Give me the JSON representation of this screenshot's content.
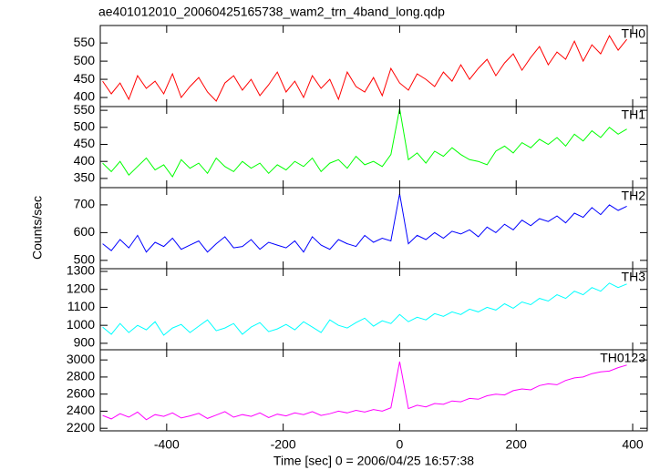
{
  "chart_data": {
    "type": "line",
    "title": "ae401012010_20060425165738_wam2_trn_4band_long.qdp",
    "x_label": "Time [sec] 0 = 2006/04/25 16:57:38",
    "y_label": "Counts/sec",
    "xlim": [
      -514,
      425
    ],
    "xticks": [
      -400,
      -200,
      0,
      200,
      400
    ],
    "x": [
      -510,
      -495,
      -480,
      -465,
      -450,
      -435,
      -420,
      -405,
      -390,
      -375,
      -360,
      -345,
      -330,
      -315,
      -300,
      -285,
      -270,
      -255,
      -240,
      -225,
      -210,
      -195,
      -180,
      -165,
      -150,
      -135,
      -120,
      -105,
      -90,
      -75,
      -60,
      -45,
      -30,
      -15,
      0,
      15,
      30,
      45,
      60,
      75,
      90,
      105,
      120,
      135,
      150,
      165,
      180,
      195,
      210,
      225,
      240,
      255,
      270,
      285,
      300,
      315,
      330,
      345,
      360,
      375,
      390
    ],
    "panels": [
      {
        "name": "TH0",
        "color": "#ff0000",
        "ylim": [
          375,
          598
        ],
        "yticks": [
          400,
          450,
          500,
          550
        ],
        "values": [
          445,
          410,
          440,
          395,
          460,
          425,
          445,
          410,
          465,
          400,
          430,
          455,
          415,
          390,
          440,
          460,
          420,
          450,
          405,
          435,
          470,
          415,
          445,
          400,
          460,
          425,
          450,
          395,
          470,
          430,
          415,
          455,
          405,
          480,
          440,
          420,
          465,
          450,
          430,
          470,
          445,
          490,
          450,
          480,
          505,
          460,
          495,
          520,
          475,
          510,
          540,
          490,
          525,
          505,
          555,
          500,
          545,
          520,
          570,
          530,
          560
        ]
      },
      {
        "name": "TH1",
        "color": "#00ff00",
        "ylim": [
          323,
          561
        ],
        "yticks": [
          350,
          400,
          450,
          500,
          550
        ],
        "values": [
          395,
          370,
          400,
          360,
          385,
          410,
          375,
          390,
          355,
          405,
          380,
          395,
          365,
          410,
          385,
          370,
          400,
          380,
          395,
          365,
          390,
          375,
          400,
          385,
          410,
          370,
          395,
          405,
          380,
          415,
          390,
          400,
          385,
          420,
          555,
          405,
          425,
          395,
          430,
          415,
          440,
          420,
          405,
          400,
          390,
          430,
          445,
          425,
          455,
          440,
          465,
          450,
          470,
          445,
          480,
          460,
          490,
          470,
          500,
          480,
          495
        ]
      },
      {
        "name": "TH2",
        "color": "#0000ff",
        "ylim": [
          470,
          762
        ],
        "yticks": [
          500,
          600,
          700
        ],
        "values": [
          560,
          535,
          575,
          545,
          590,
          530,
          565,
          550,
          580,
          540,
          555,
          570,
          530,
          560,
          585,
          545,
          550,
          575,
          540,
          565,
          555,
          545,
          570,
          530,
          585,
          555,
          540,
          575,
          560,
          550,
          590,
          565,
          580,
          570,
          740,
          560,
          590,
          575,
          600,
          580,
          605,
          595,
          610,
          585,
          620,
          600,
          630,
          610,
          645,
          625,
          650,
          640,
          660,
          635,
          670,
          655,
          690,
          665,
          700,
          680,
          695
        ]
      },
      {
        "name": "TH3",
        "color": "#00ffff",
        "ylim": [
          864,
          1315
        ],
        "yticks": [
          900,
          1000,
          1100,
          1200,
          1300
        ],
        "values": [
          990,
          950,
          1010,
          960,
          1000,
          975,
          1020,
          945,
          985,
          1005,
          960,
          995,
          1030,
          970,
          985,
          1010,
          950,
          990,
          1015,
          965,
          980,
          1005,
          975,
          1020,
          990,
          960,
          1030,
          1000,
          985,
          1015,
          1040,
          995,
          1025,
          1010,
          1060,
          1020,
          1045,
          1030,
          1065,
          1050,
          1075,
          1060,
          1090,
          1075,
          1100,
          1085,
          1120,
          1095,
          1130,
          1115,
          1150,
          1135,
          1170,
          1150,
          1190,
          1170,
          1210,
          1190,
          1235,
          1210,
          1230
        ]
      },
      {
        "name": "TH0123",
        "color": "#ff00ff",
        "ylim": [
          2170,
          3119
        ],
        "yticks": [
          2200,
          2400,
          2600,
          2800,
          3000
        ],
        "values": [
          2350,
          2310,
          2370,
          2330,
          2390,
          2300,
          2360,
          2340,
          2380,
          2320,
          2345,
          2375,
          2315,
          2355,
          2395,
          2330,
          2360,
          2340,
          2380,
          2325,
          2365,
          2345,
          2380,
          2360,
          2395,
          2350,
          2370,
          2400,
          2380,
          2410,
          2390,
          2420,
          2400,
          2440,
          2980,
          2430,
          2470,
          2450,
          2490,
          2480,
          2520,
          2510,
          2550,
          2540,
          2580,
          2600,
          2590,
          2640,
          2660,
          2650,
          2700,
          2720,
          2710,
          2760,
          2790,
          2800,
          2840,
          2860,
          2870,
          2910,
          2940
        ]
      }
    ]
  }
}
